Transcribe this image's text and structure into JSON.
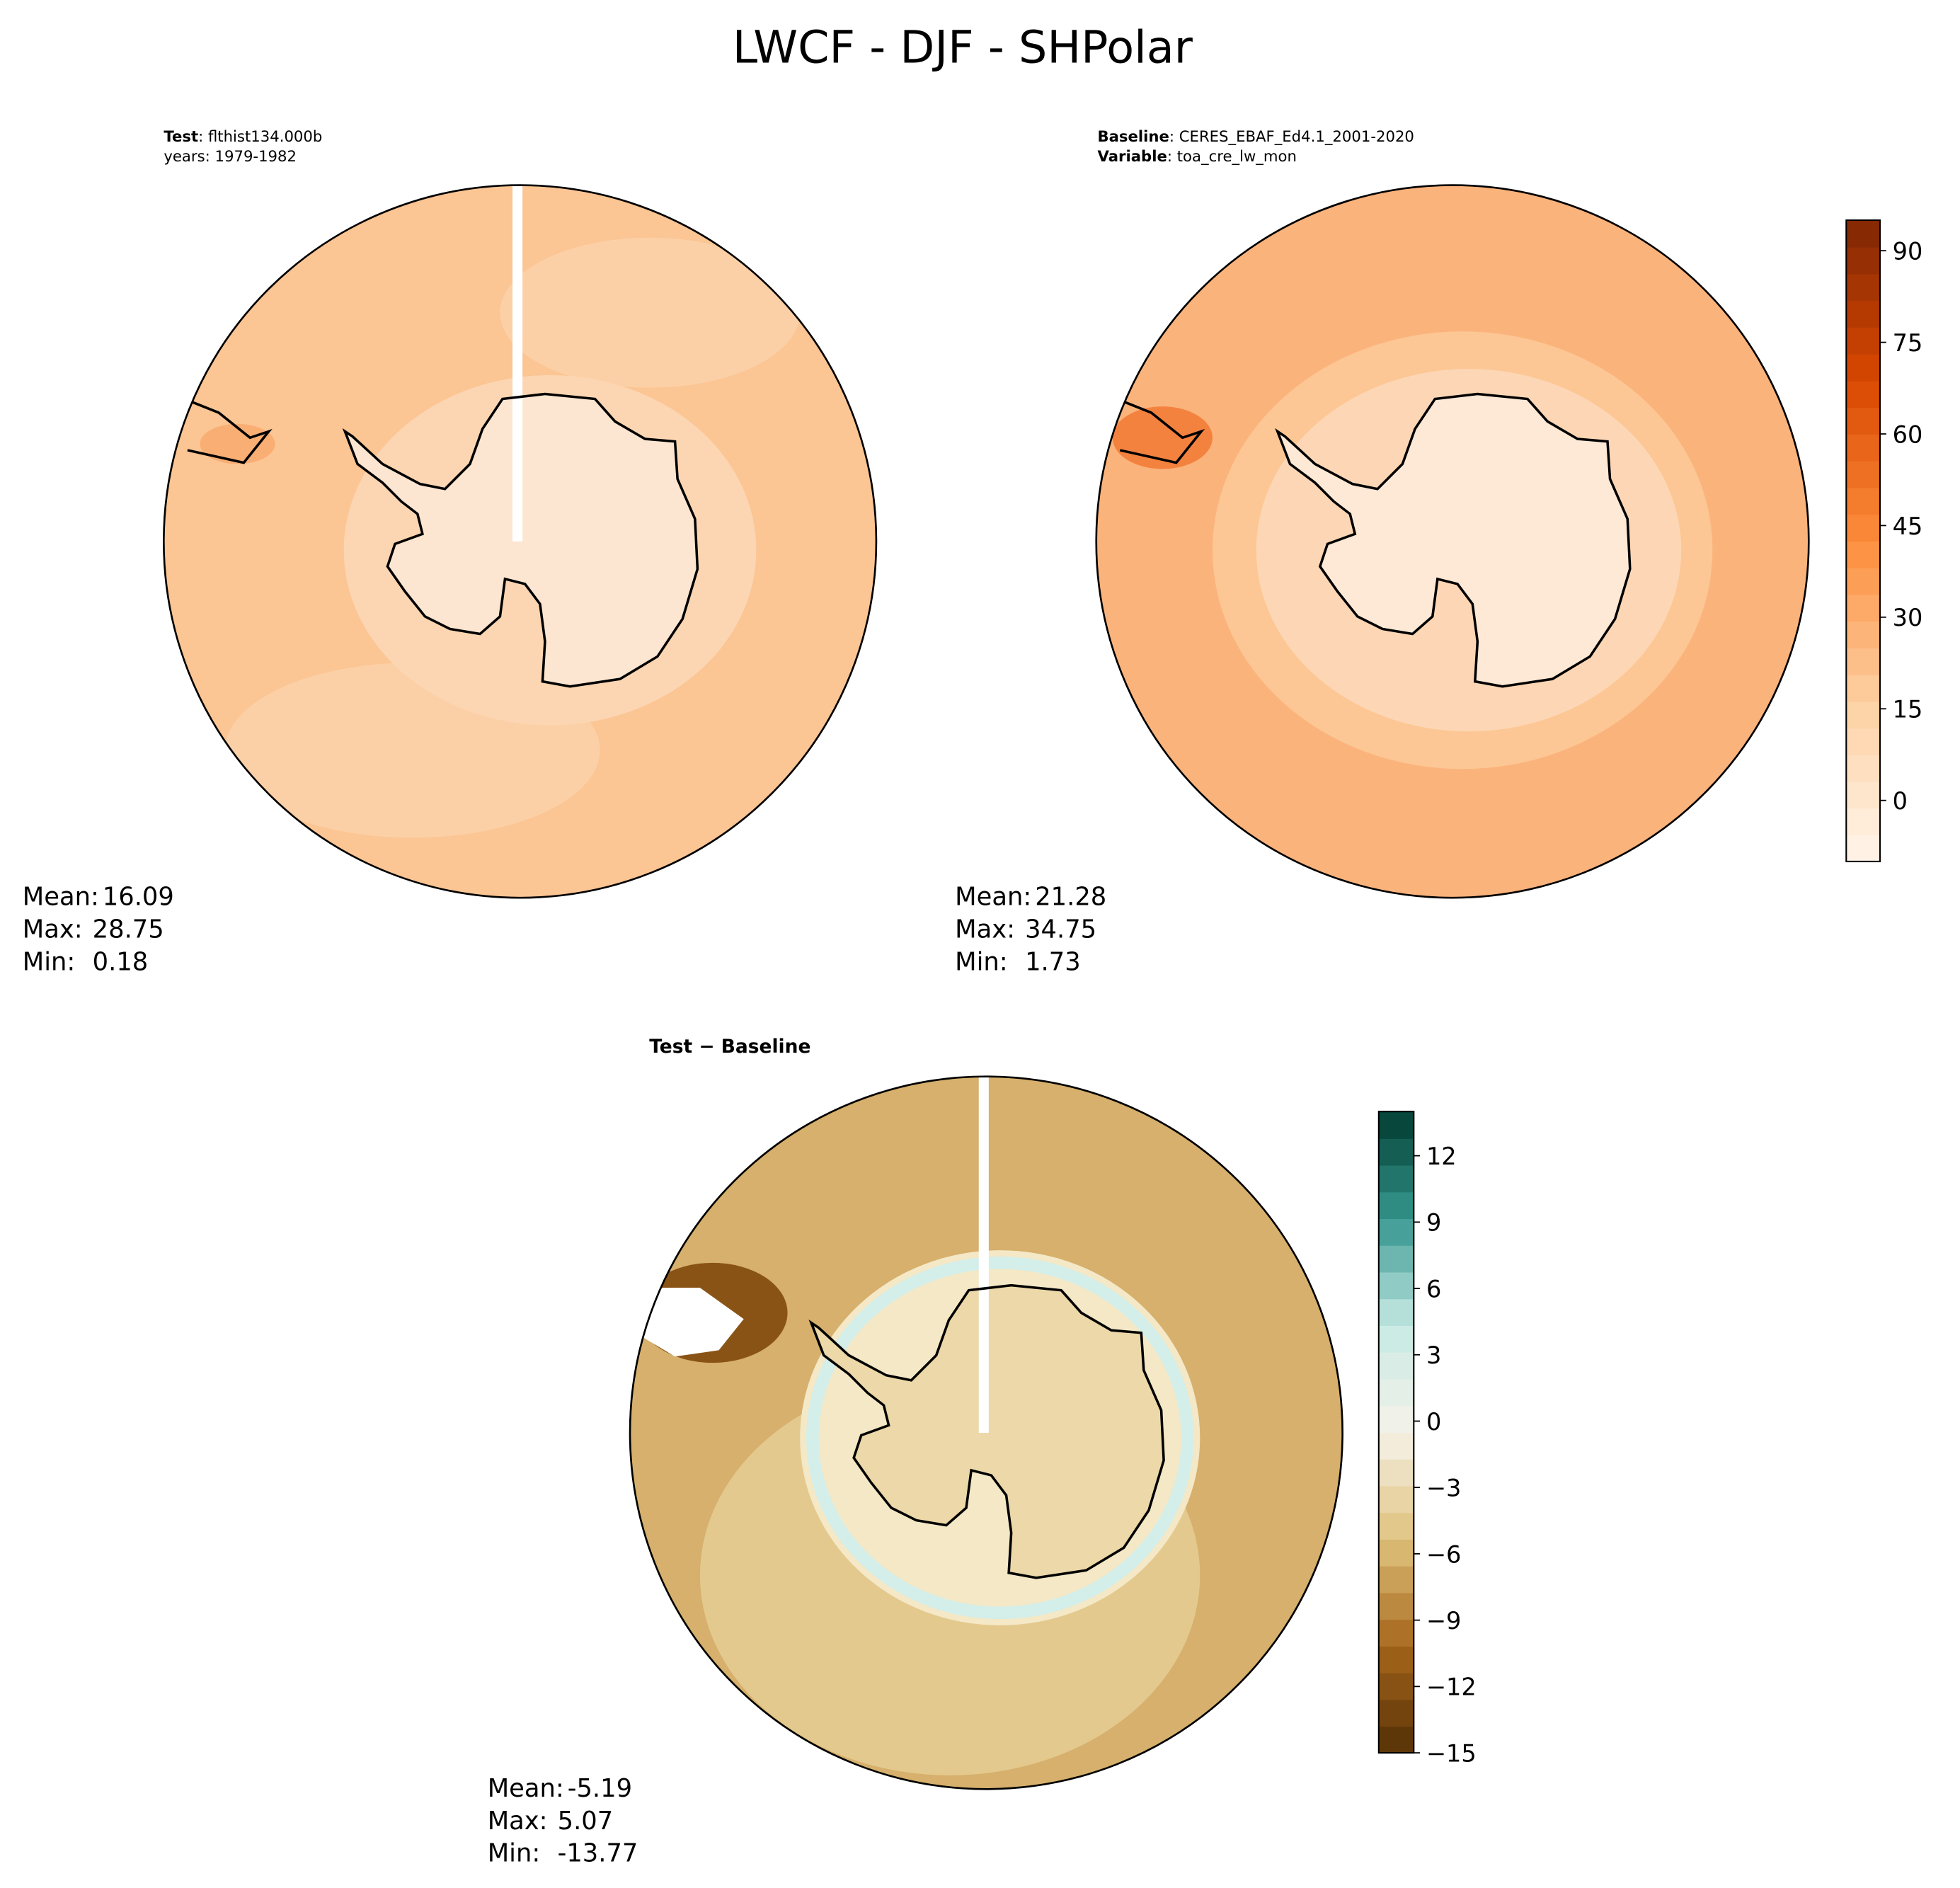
{
  "title": "LWCF - DJF - SHPolar",
  "chart_data": [
    {
      "type": "map",
      "labels": [
        {
          "key": "Test",
          "text": ": flthist134.000b"
        },
        {
          "text": "years: 1979-1982"
        }
      ],
      "stats": [
        {
          "label": "Mean:",
          "value": 16.09
        },
        {
          "label": "Max:",
          "value": 28.75
        },
        {
          "label": "Min:",
          "value": 0.18
        }
      ]
    },
    {
      "type": "map",
      "labels": [
        {
          "key": "Baseline",
          "text": ": CERES_EBAF_Ed4.1_2001-2020"
        },
        {
          "key": "Variable",
          "text": ": toa_cre_lw_mon"
        }
      ],
      "stats": [
        {
          "label": "Mean:",
          "value": 21.28
        },
        {
          "label": "Max:",
          "value": 34.75
        },
        {
          "label": "Min:",
          "value": 1.73
        }
      ],
      "colorbar": {
        "ylim": [
          -10,
          95
        ],
        "yticks": [
          0,
          15,
          30,
          45,
          60,
          75,
          90
        ],
        "colors": [
          "#fff5eb",
          "#fdd0a2",
          "#fd8d3c",
          "#d94801",
          "#7f2704"
        ]
      }
    },
    {
      "type": "map",
      "title": "Test − Baseline",
      "stats": [
        {
          "label": "Mean:",
          "value": -5.19
        },
        {
          "label": "Max:",
          "value": 5.07
        },
        {
          "label": "Min:",
          "value": -13.77
        }
      ],
      "colorbar": {
        "ylim": [
          -15,
          14
        ],
        "yticks": [
          {
            "value": -15,
            "label": "−15"
          },
          {
            "value": -12,
            "label": "−12"
          },
          {
            "value": -9,
            "label": "−9"
          },
          {
            "value": -6,
            "label": "−6"
          },
          {
            "value": -3,
            "label": "−3"
          },
          0,
          3,
          6,
          9,
          12
        ],
        "colors": [
          "#543005",
          "#a6661b",
          "#dfc27d",
          "#f6f2e8",
          "#c7eae5",
          "#35978f",
          "#003c30"
        ]
      }
    }
  ]
}
